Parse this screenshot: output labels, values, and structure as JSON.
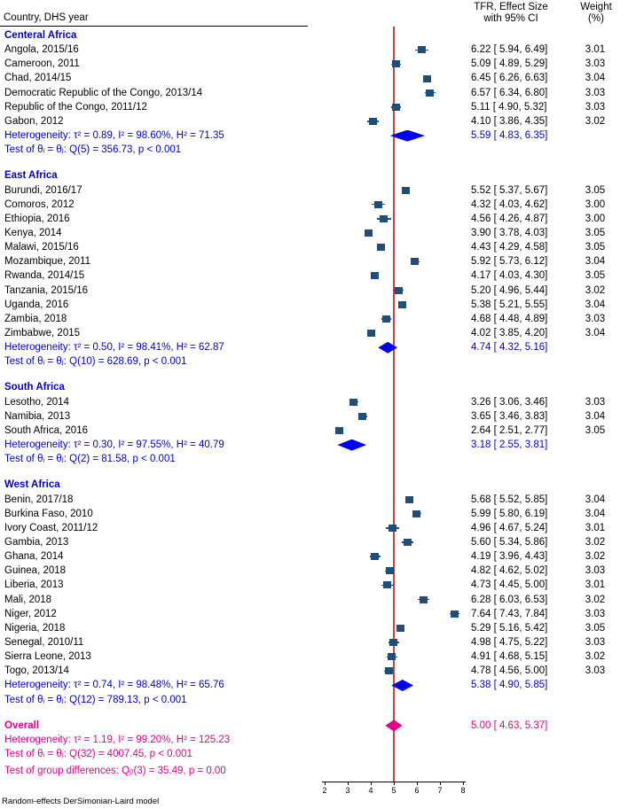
{
  "title_block": {
    "left_header": "Country, DHS year",
    "effect_header_line1": "TFR, Effect Size",
    "effect_header_line2": "with 95% CI",
    "weight_header_line1": "Weight",
    "weight_header_line2": "(%)"
  },
  "footer_note": "Random-effects DerSimonian-Laird model",
  "colors": {
    "text": "#000000",
    "group_text": "#0000d4",
    "study_marker": "#1f4e79",
    "subgroup_diamond": "#0000ee",
    "overall_color": "#e8008c",
    "ref_line": "#cc4444"
  },
  "chart_data": {
    "type": "forest",
    "x_range": [
      2,
      8
    ],
    "xlabel_ticks": [
      2,
      3,
      4,
      5,
      6,
      7,
      8
    ],
    "ref_line_value": 5.0,
    "groups": [
      {
        "name": "Centeral Africa",
        "studies": [
          {
            "label": "Angola, 2015/16",
            "est": 6.22,
            "lo": 5.94,
            "hi": 6.49,
            "effect": "6.22 [ 5.94, 6.49]",
            "weight": "3.01"
          },
          {
            "label": "Cameroon, 2011",
            "est": 5.09,
            "lo": 4.89,
            "hi": 5.29,
            "effect": "5.09 [ 4.89, 5.29]",
            "weight": "3.03"
          },
          {
            "label": "Chad, 2014/15",
            "est": 6.45,
            "lo": 6.26,
            "hi": 6.63,
            "effect": "6.45 [ 6.26, 6.63]",
            "weight": "3.04"
          },
          {
            "label": "Democratic Republic of the Congo, 2013/14",
            "est": 6.57,
            "lo": 6.34,
            "hi": 6.8,
            "effect": "6.57 [ 6.34, 6.80]",
            "weight": "3.03"
          },
          {
            "label": "Republic of the Congo, 2011/12",
            "est": 5.11,
            "lo": 4.9,
            "hi": 5.32,
            "effect": "5.11 [ 4.90, 5.32]",
            "weight": "3.03"
          },
          {
            "label": "Gabon, 2012",
            "est": 4.1,
            "lo": 3.86,
            "hi": 4.35,
            "effect": "4.10 [ 3.86, 4.35]",
            "weight": "3.02"
          }
        ],
        "heterogeneity": "Heterogeneity: τ² = 0.89, I² = 98.60%, H² = 71.35",
        "summary": {
          "est": 5.59,
          "lo": 4.83,
          "hi": 6.35,
          "effect": "5.59 [ 4.83, 6.35]"
        },
        "test": "Test of θᵢ = θⱼ: Q(5) = 356.73, p < 0.001"
      },
      {
        "name": "East Africa",
        "studies": [
          {
            "label": "Burundi, 2016/17",
            "est": 5.52,
            "lo": 5.37,
            "hi": 5.67,
            "effect": "5.52 [ 5.37, 5.67]",
            "weight": "3.05"
          },
          {
            "label": "Comoros, 2012",
            "est": 4.32,
            "lo": 4.03,
            "hi": 4.62,
            "effect": "4.32 [ 4.03, 4.62]",
            "weight": "3.00"
          },
          {
            "label": "Ethiopia, 2016",
            "est": 4.56,
            "lo": 4.26,
            "hi": 4.87,
            "effect": "4.56 [ 4.26, 4.87]",
            "weight": "3.00"
          },
          {
            "label": "Kenya, 2014",
            "est": 3.9,
            "lo": 3.78,
            "hi": 4.03,
            "effect": "3.90 [ 3.78, 4.03]",
            "weight": "3.05"
          },
          {
            "label": "Malawi, 2015/16",
            "est": 4.43,
            "lo": 4.29,
            "hi": 4.58,
            "effect": "4.43 [ 4.29, 4.58]",
            "weight": "3.05"
          },
          {
            "label": "Mozambique, 2011",
            "est": 5.92,
            "lo": 5.73,
            "hi": 6.12,
            "effect": "5.92 [ 5.73, 6.12]",
            "weight": "3.04"
          },
          {
            "label": "Rwanda, 2014/15",
            "est": 4.17,
            "lo": 4.03,
            "hi": 4.3,
            "effect": "4.17 [ 4.03, 4.30]",
            "weight": "3.05"
          },
          {
            "label": "Tanzania, 2015/16",
            "est": 5.2,
            "lo": 4.96,
            "hi": 5.44,
            "effect": "5.20 [ 4.96, 5.44]",
            "weight": "3.02"
          },
          {
            "label": "Uganda, 2016",
            "est": 5.38,
            "lo": 5.21,
            "hi": 5.55,
            "effect": "5.38 [ 5.21, 5.55]",
            "weight": "3.04"
          },
          {
            "label": "Zambia, 2018",
            "est": 4.68,
            "lo": 4.48,
            "hi": 4.89,
            "effect": "4.68 [ 4.48, 4.89]",
            "weight": "3.03"
          },
          {
            "label": "Zimbabwe, 2015",
            "est": 4.02,
            "lo": 3.85,
            "hi": 4.2,
            "effect": "4.02 [ 3.85, 4.20]",
            "weight": "3.04"
          }
        ],
        "heterogeneity": "Heterogeneity: τ² = 0.50, I² = 98.41%, H² = 62.87",
        "summary": {
          "est": 4.74,
          "lo": 4.32,
          "hi": 5.16,
          "effect": "4.74 [ 4.32, 5.16]"
        },
        "test": "Test of θᵢ = θⱼ: Q(10) = 628.69, p < 0.001"
      },
      {
        "name": "South Africa",
        "studies": [
          {
            "label": "Lesotho, 2014",
            "est": 3.26,
            "lo": 3.06,
            "hi": 3.46,
            "effect": "3.26 [ 3.06, 3.46]",
            "weight": "3.03"
          },
          {
            "label": "Namibia, 2013",
            "est": 3.65,
            "lo": 3.46,
            "hi": 3.83,
            "effect": "3.65 [ 3.46, 3.83]",
            "weight": "3.04"
          },
          {
            "label": "South Africa, 2016",
            "est": 2.64,
            "lo": 2.51,
            "hi": 2.77,
            "effect": "2.64 [ 2.51, 2.77]",
            "weight": "3.05"
          }
        ],
        "heterogeneity": "Heterogeneity: τ² = 0.30, I² = 97.55%, H² = 40.79",
        "summary": {
          "est": 3.18,
          "lo": 2.55,
          "hi": 3.81,
          "effect": "3.18 [ 2.55, 3.81]"
        },
        "test": "Test of θᵢ = θⱼ: Q(2) = 81.58, p < 0.001"
      },
      {
        "name": "West Africa",
        "studies": [
          {
            "label": "Benin, 2017/18",
            "est": 5.68,
            "lo": 5.52,
            "hi": 5.85,
            "effect": "5.68 [ 5.52, 5.85]",
            "weight": "3.04"
          },
          {
            "label": "Burkina Faso, 2010",
            "est": 5.99,
            "lo": 5.8,
            "hi": 6.19,
            "effect": "5.99 [ 5.80, 6.19]",
            "weight": "3.04"
          },
          {
            "label": "Ivory Coast, 2011/12",
            "est": 4.96,
            "lo": 4.67,
            "hi": 5.24,
            "effect": "4.96 [ 4.67, 5.24]",
            "weight": "3.01"
          },
          {
            "label": "Gambia, 2013",
            "est": 5.6,
            "lo": 5.34,
            "hi": 5.86,
            "effect": "5.60 [ 5.34, 5.86]",
            "weight": "3.02"
          },
          {
            "label": "Ghana, 2014",
            "est": 4.19,
            "lo": 3.96,
            "hi": 4.43,
            "effect": "4.19 [ 3.96, 4.43]",
            "weight": "3.02"
          },
          {
            "label": "Guinea, 2018",
            "est": 4.82,
            "lo": 4.62,
            "hi": 5.02,
            "effect": "4.82 [ 4.62, 5.02]",
            "weight": "3.03"
          },
          {
            "label": "Liberia, 2013",
            "est": 4.73,
            "lo": 4.45,
            "hi": 5.0,
            "effect": "4.73 [ 4.45, 5.00]",
            "weight": "3.01"
          },
          {
            "label": "Mali, 2018",
            "est": 6.28,
            "lo": 6.03,
            "hi": 6.53,
            "effect": "6.28 [ 6.03, 6.53]",
            "weight": "3.02"
          },
          {
            "label": "Niger, 2012",
            "est": 7.64,
            "lo": 7.43,
            "hi": 7.84,
            "effect": "7.64 [ 7.43, 7.84]",
            "weight": "3.03"
          },
          {
            "label": "Nigeria, 2018",
            "est": 5.29,
            "lo": 5.16,
            "hi": 5.42,
            "effect": "5.29 [ 5.16, 5.42]",
            "weight": "3.05"
          },
          {
            "label": "Senegal, 2010/11",
            "est": 4.98,
            "lo": 4.75,
            "hi": 5.22,
            "effect": "4.98 [ 4.75, 5.22]",
            "weight": "3.03"
          },
          {
            "label": "Sierra Leone, 2013",
            "est": 4.91,
            "lo": 4.68,
            "hi": 5.15,
            "effect": "4.91 [ 4.68, 5.15]",
            "weight": "3.02"
          },
          {
            "label": "Togo, 2013/14",
            "est": 4.78,
            "lo": 4.56,
            "hi": 5.0,
            "effect": "4.78 [ 4.56, 5.00]",
            "weight": "3.03"
          }
        ],
        "heterogeneity": "Heterogeneity: τ² = 0.74, I² = 98.48%, H² = 65.76",
        "summary": {
          "est": 5.38,
          "lo": 4.9,
          "hi": 5.85,
          "effect": "5.38 [ 4.90, 5.85]"
        },
        "test": "Test of θᵢ = θⱼ: Q(12) = 789.13, p < 0.001"
      }
    ],
    "overall": {
      "label": "Overall",
      "est": 5.0,
      "lo": 4.63,
      "hi": 5.37,
      "effect": "5.00 [ 4.63, 5.37]",
      "heterogeneity": "Heterogeneity: τ² = 1.19, I² = 99.20%, H² = 125.23",
      "test": "Test of θᵢ = θⱼ: Q(32) = 4007.45, p < 0.001",
      "group_diff_test": "Test of group differences: Qᵦ(3) = 35.49, p = 0.00"
    }
  }
}
